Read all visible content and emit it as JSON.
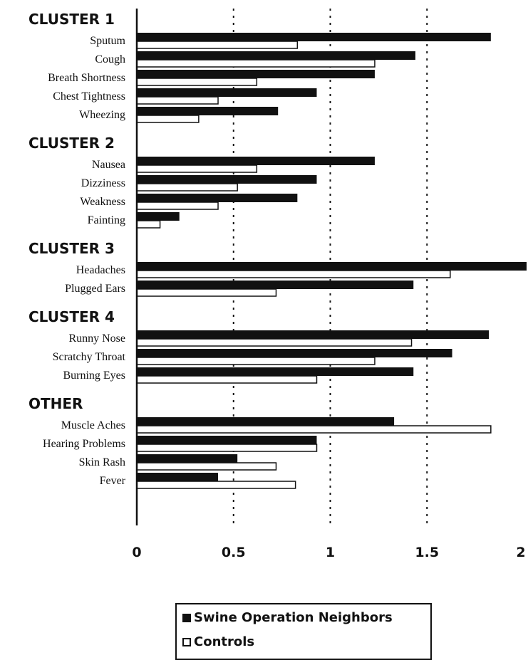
{
  "chart_data": {
    "type": "bar",
    "orientation": "horizontal",
    "xlim": [
      0,
      2
    ],
    "xticks": [
      "0",
      "0.5",
      "1",
      "1.5",
      "2"
    ],
    "gridlines": [
      0.5,
      1,
      1.5
    ],
    "colors": {
      "swine": "#111111",
      "controls": "#ffffff",
      "outline": "#111111"
    },
    "series": [
      {
        "name": "Swine Operation Neighbors"
      },
      {
        "name": "Controls"
      }
    ],
    "groups": [
      {
        "title": "CLUSTER 1",
        "items": [
          {
            "label": "Sputum",
            "values": [
              1.83,
              0.83
            ]
          },
          {
            "label": "Cough",
            "values": [
              1.44,
              1.23
            ]
          },
          {
            "label": "Breath Shortness",
            "values": [
              1.23,
              0.62
            ]
          },
          {
            "label": "Chest Tightness",
            "values": [
              0.93,
              0.42
            ]
          },
          {
            "label": "Wheezing",
            "values": [
              0.73,
              0.32
            ]
          }
        ]
      },
      {
        "title": "CLUSTER 2",
        "items": [
          {
            "label": "Nausea",
            "values": [
              1.23,
              0.62
            ]
          },
          {
            "label": "Dizziness",
            "values": [
              0.93,
              0.52
            ]
          },
          {
            "label": "Weakness",
            "values": [
              0.83,
              0.42
            ]
          },
          {
            "label": "Fainting",
            "values": [
              0.22,
              0.12
            ]
          }
        ]
      },
      {
        "title": "CLUSTER 3",
        "items": [
          {
            "label": "Headaches",
            "values": [
              2.02,
              1.62
            ]
          },
          {
            "label": "Plugged Ears",
            "values": [
              1.43,
              0.72
            ]
          }
        ]
      },
      {
        "title": "CLUSTER 4",
        "items": [
          {
            "label": "Runny Nose",
            "values": [
              1.82,
              1.42
            ]
          },
          {
            "label": "Scratchy Throat",
            "values": [
              1.63,
              1.23
            ]
          },
          {
            "label": "Burning Eyes",
            "values": [
              1.43,
              0.93
            ]
          }
        ]
      },
      {
        "title": "OTHER",
        "items": [
          {
            "label": "Muscle Aches",
            "values": [
              1.33,
              1.83
            ]
          },
          {
            "label": "Hearing Problems",
            "values": [
              0.93,
              0.93
            ]
          },
          {
            "label": "Skin Rash",
            "values": [
              0.52,
              0.72
            ]
          },
          {
            "label": "Fever",
            "values": [
              0.42,
              0.82
            ]
          }
        ]
      }
    ]
  }
}
